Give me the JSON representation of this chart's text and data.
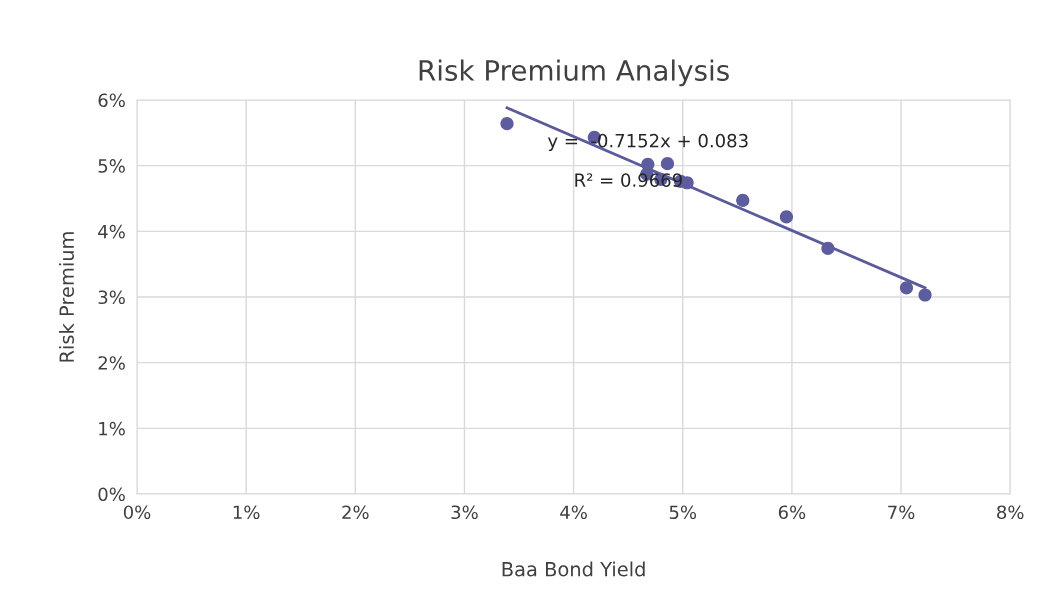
{
  "chart_data": {
    "type": "scatter",
    "title": "Risk Premium Analysis",
    "xlabel": "Baa Bond Yield",
    "ylabel": "Risk Premium",
    "x": [
      3.39,
      4.19,
      4.68,
      4.86,
      4.67,
      4.8,
      4.98,
      5.04,
      5.55,
      5.95,
      6.33,
      7.05,
      7.22
    ],
    "series": [
      {
        "color": "#5c5c9e",
        "values": [
          5.64,
          5.43,
          5.02,
          5.03,
          4.87,
          4.79,
          4.76,
          4.74,
          4.47,
          4.22,
          3.74,
          3.14,
          3.03
        ]
      },
      {
        "type": "line",
        "color": "#5b5b9b",
        "marker": "none",
        "x": [
          3.39,
          7.22
        ],
        "values": [
          5.88,
          3.14
        ]
      }
    ],
    "annotations": [
      "y =  -0.7152x + 0.083",
      "R² = 0.9669"
    ],
    "xlim": [
      0,
      8
    ],
    "ylim": [
      0,
      6
    ],
    "xticks": [
      {
        "value": 0,
        "label": "0%"
      },
      {
        "value": 1,
        "label": "1%"
      },
      {
        "value": 2,
        "label": "2%"
      },
      {
        "value": 3,
        "label": "3%"
      },
      {
        "value": 4,
        "label": "4%"
      },
      {
        "value": 5,
        "label": "5%"
      },
      {
        "value": 6,
        "label": "6%"
      },
      {
        "value": 7,
        "label": "7%"
      },
      {
        "value": 8,
        "label": "8%"
      }
    ],
    "yticks": [
      {
        "value": 0,
        "label": "0%"
      },
      {
        "value": 1,
        "label": "1%"
      },
      {
        "value": 2,
        "label": "2%"
      },
      {
        "value": 3,
        "label": "3%"
      },
      {
        "value": 4,
        "label": "4%"
      },
      {
        "value": 5,
        "label": "5%"
      },
      {
        "value": 6,
        "label": "6%"
      }
    ],
    "grid": true,
    "marker": "circle",
    "legend": false
  }
}
